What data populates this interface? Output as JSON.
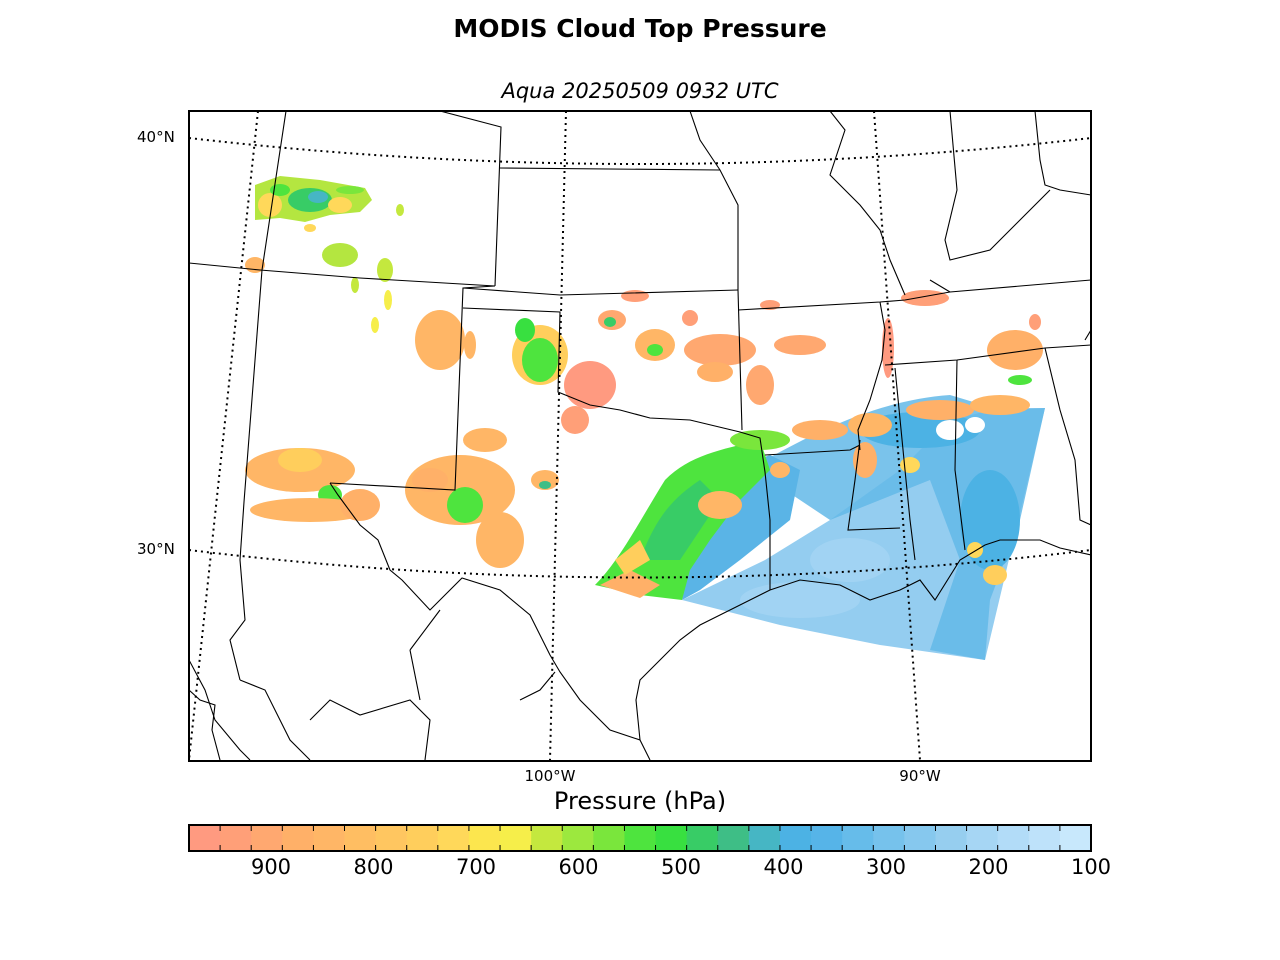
{
  "figure": {
    "title": "MODIS Cloud Top Pressure",
    "subtitle": "Aqua 20250509 0932 UTC"
  },
  "map": {
    "latitude_labels": [
      {
        "lat": 40,
        "text": "40°N"
      },
      {
        "lat": 30,
        "text": "30°N"
      }
    ],
    "longitude_labels": [
      {
        "lon": -100,
        "text": "100°W"
      },
      {
        "lon": -90,
        "text": "90°W"
      }
    ],
    "graticule_style": "dotted"
  },
  "colorbar": {
    "label": "Pressure (hPa)",
    "range": [
      980,
      100
    ],
    "ticks": [
      {
        "value": 900,
        "text": "900"
      },
      {
        "value": 800,
        "text": "800"
      },
      {
        "value": 700,
        "text": "700"
      },
      {
        "value": 600,
        "text": "600"
      },
      {
        "value": 500,
        "text": "500"
      },
      {
        "value": 400,
        "text": "400"
      },
      {
        "value": 300,
        "text": "300"
      },
      {
        "value": 200,
        "text": "200"
      },
      {
        "value": 100,
        "text": "100"
      }
    ],
    "colors": [
      "#ff9a80",
      "#ff9f78",
      "#ffa870",
      "#ffb068",
      "#ffb666",
      "#ffbe62",
      "#ffc660",
      "#ffce5c",
      "#ffd85a",
      "#fce64e",
      "#f6ee4a",
      "#c4e83e",
      "#9ce83e",
      "#7ae63c",
      "#4ee43e",
      "#38e040",
      "#38cc66",
      "#3ebe86",
      "#46b6c4",
      "#4cb2e4",
      "#56b4e8",
      "#66bcea",
      "#76c2ec",
      "#86c8ee",
      "#96ceef",
      "#a6d6f4",
      "#b2dcf8",
      "#bee2fa",
      "#c8e8fc"
    ]
  }
}
